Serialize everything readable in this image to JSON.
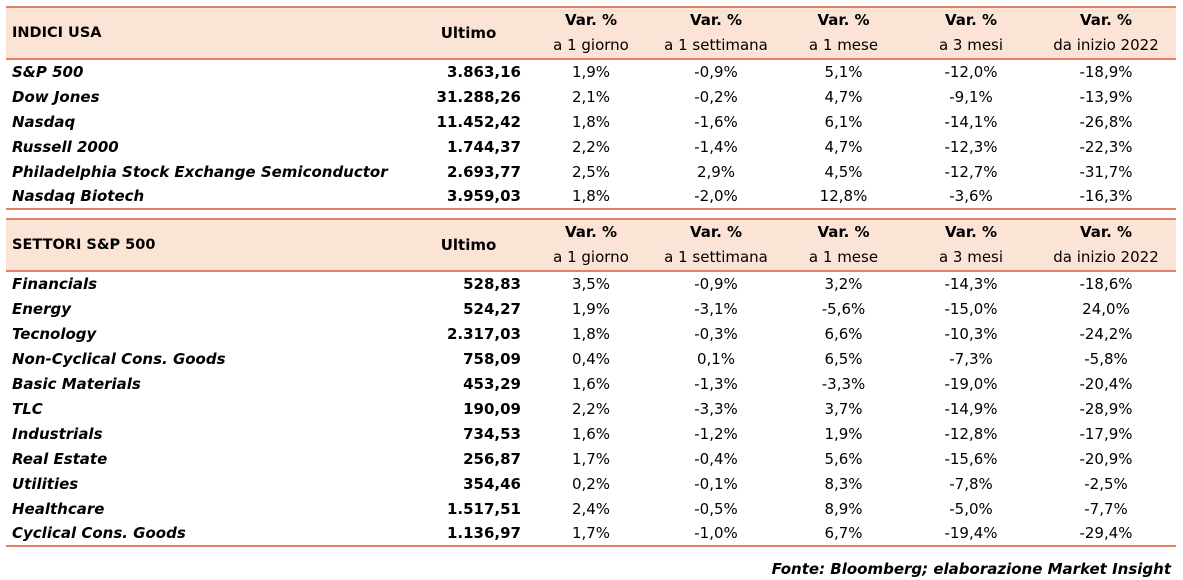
{
  "header": {
    "ultimo": "Ultimo",
    "var_top": "Var. %",
    "periods": [
      "a 1 giorno",
      "a 1 settimana",
      "a 1 mese",
      "a 3 mesi",
      "da inizio 2022"
    ]
  },
  "indici": {
    "title": "INDICI USA",
    "rows": [
      {
        "name": "S&P 500",
        "last": "3.863,16",
        "d1": "1,9%",
        "w1": "-0,9%",
        "m1": "5,1%",
        "m3": "-12,0%",
        "ytd": "-18,9%"
      },
      {
        "name": "Dow Jones",
        "last": "31.288,26",
        "d1": "2,1%",
        "w1": "-0,2%",
        "m1": "4,7%",
        "m3": "-9,1%",
        "ytd": "-13,9%"
      },
      {
        "name": "Nasdaq",
        "last": "11.452,42",
        "d1": "1,8%",
        "w1": "-1,6%",
        "m1": "6,1%",
        "m3": "-14,1%",
        "ytd": "-26,8%"
      },
      {
        "name": "Russell 2000",
        "last": "1.744,37",
        "d1": "2,2%",
        "w1": "-1,4%",
        "m1": "4,7%",
        "m3": "-12,3%",
        "ytd": "-22,3%"
      },
      {
        "name": "Philadelphia Stock Exchange Semiconductor",
        "last": "2.693,77",
        "d1": "2,5%",
        "w1": "2,9%",
        "m1": "4,5%",
        "m3": "-12,7%",
        "ytd": "-31,7%"
      },
      {
        "name": "Nasdaq Biotech",
        "last": "3.959,03",
        "d1": "1,8%",
        "w1": "-2,0%",
        "m1": "12,8%",
        "m3": "-3,6%",
        "ytd": "-16,3%"
      }
    ]
  },
  "settori": {
    "title": "SETTORI S&P 500",
    "rows": [
      {
        "name": "Financials",
        "last": "528,83",
        "d1": "3,5%",
        "w1": "-0,9%",
        "m1": "3,2%",
        "m3": "-14,3%",
        "ytd": "-18,6%"
      },
      {
        "name": "Energy",
        "last": "524,27",
        "d1": "1,9%",
        "w1": "-3,1%",
        "m1": "-5,6%",
        "m3": "-15,0%",
        "ytd": "24,0%"
      },
      {
        "name": "Tecnology",
        "last": "2.317,03",
        "d1": "1,8%",
        "w1": "-0,3%",
        "m1": "6,6%",
        "m3": "-10,3%",
        "ytd": "-24,2%"
      },
      {
        "name": "Non-Cyclical Cons. Goods",
        "last": "758,09",
        "d1": "0,4%",
        "w1": "0,1%",
        "m1": "6,5%",
        "m3": "-7,3%",
        "ytd": "-5,8%"
      },
      {
        "name": "Basic Materials",
        "last": "453,29",
        "d1": "1,6%",
        "w1": "-1,3%",
        "m1": "-3,3%",
        "m3": "-19,0%",
        "ytd": "-20,4%"
      },
      {
        "name": "TLC",
        "last": "190,09",
        "d1": "2,2%",
        "w1": "-3,3%",
        "m1": "3,7%",
        "m3": "-14,9%",
        "ytd": "-28,9%"
      },
      {
        "name": "Industrials",
        "last": "734,53",
        "d1": "1,6%",
        "w1": "-1,2%",
        "m1": "1,9%",
        "m3": "-12,8%",
        "ytd": "-17,9%"
      },
      {
        "name": "Real Estate",
        "last": "256,87",
        "d1": "1,7%",
        "w1": "-0,4%",
        "m1": "5,6%",
        "m3": "-15,6%",
        "ytd": "-20,9%"
      },
      {
        "name": "Utilities",
        "last": "354,46",
        "d1": "0,2%",
        "w1": "-0,1%",
        "m1": "8,3%",
        "m3": "-7,8%",
        "ytd": "-2,5%"
      },
      {
        "name": "Healthcare",
        "last": "1.517,51",
        "d1": "2,4%",
        "w1": "-0,5%",
        "m1": "8,9%",
        "m3": "-5,0%",
        "ytd": "-7,7%"
      },
      {
        "name": "Cyclical Cons. Goods",
        "last": "1.136,97",
        "d1": "1,7%",
        "w1": "-1,0%",
        "m1": "6,7%",
        "m3": "-19,4%",
        "ytd": "-29,4%"
      }
    ]
  },
  "source": "Fonte: Bloomberg; elaborazione Market Insight",
  "colors": {
    "header_bg": "#fbe3d5",
    "rule": "#e2806a"
  }
}
